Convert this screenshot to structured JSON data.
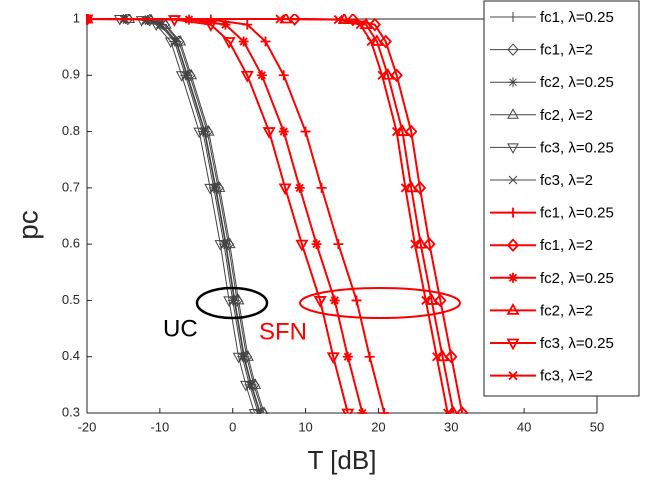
{
  "chart_data": {
    "type": "line",
    "x_label": "T [dB]",
    "y_label": "pc",
    "xlim": [
      -20,
      50
    ],
    "xticks": [
      -20,
      -10,
      0,
      10,
      20,
      30,
      40,
      50
    ],
    "ylim": [
      0.3,
      1
    ],
    "yticks": [
      0.3,
      0.4,
      0.5,
      0.6,
      0.7,
      0.8,
      0.9,
      1
    ],
    "annotations": [
      {
        "text": "UC",
        "color": "#000000"
      },
      {
        "text": "SFN",
        "color": "#ff0000"
      }
    ],
    "series": [
      {
        "name": "fc1, λ=0.25",
        "color": "#444444",
        "marker": "plus",
        "x": [
          -20,
          -14.7,
          -11.7,
          -9.7,
          -7.7,
          -6.2,
          -3.8,
          -2.3,
          -0.9,
          0.3,
          1.6,
          2.6,
          3.8
        ],
        "values": [
          1,
          1,
          0.998,
          0.99,
          0.96,
          0.9,
          0.8,
          0.7,
          0.6,
          0.5,
          0.4,
          0.35,
          0.3
        ]
      },
      {
        "name": "fc1, λ=2",
        "color": "#444444",
        "marker": "diamond",
        "x": [
          -20,
          -14.4,
          -11.4,
          -9.4,
          -7.4,
          -5.9,
          -3.5,
          -2,
          -0.6,
          0.6,
          1.9,
          2.9,
          4.1
        ],
        "values": [
          1,
          1,
          0.998,
          0.99,
          0.96,
          0.9,
          0.8,
          0.7,
          0.6,
          0.5,
          0.4,
          0.35,
          0.3
        ]
      },
      {
        "name": "fc2, λ=0.25",
        "color": "#444444",
        "marker": "star",
        "x": [
          -20,
          -15,
          -12,
          -10,
          -8,
          -6.5,
          -4.1,
          -2.6,
          -1.2,
          0,
          1.3,
          2.3,
          3.5
        ],
        "values": [
          1,
          1,
          0.998,
          0.99,
          0.96,
          0.9,
          0.8,
          0.7,
          0.6,
          0.5,
          0.4,
          0.35,
          0.3
        ]
      },
      {
        "name": "fc2, λ=2",
        "color": "#444444",
        "marker": "triup",
        "x": [
          -20,
          -14.2,
          -11.2,
          -9.2,
          -7.2,
          -5.7,
          -3.3,
          -1.8,
          -0.4,
          0.8,
          2.1,
          3.1,
          4.3
        ],
        "values": [
          1,
          1,
          0.998,
          0.99,
          0.96,
          0.9,
          0.8,
          0.7,
          0.6,
          0.5,
          0.4,
          0.35,
          0.3
        ]
      },
      {
        "name": "fc3, λ=0.25",
        "color": "#444444",
        "marker": "tridown",
        "x": [
          -20,
          -15.5,
          -12.5,
          -10.5,
          -8.5,
          -7,
          -4.6,
          -3.1,
          -1.7,
          -0.5,
          0.8,
          1.8,
          3
        ],
        "values": [
          1,
          1,
          0.998,
          0.99,
          0.96,
          0.9,
          0.8,
          0.7,
          0.6,
          0.5,
          0.4,
          0.35,
          0.3
        ]
      },
      {
        "name": "fc3, λ=2",
        "color": "#444444",
        "marker": "cross",
        "x": [
          -20,
          -14.8,
          -11.8,
          -9.8,
          -7.8,
          -6.3,
          -3.9,
          -2.4,
          -1,
          0.2,
          1.5,
          2.5,
          3.7
        ],
        "values": [
          1,
          1,
          0.998,
          0.99,
          0.96,
          0.9,
          0.8,
          0.7,
          0.6,
          0.5,
          0.4,
          0.35,
          0.3
        ]
      },
      {
        "name": "fc1, λ=0.25",
        "color": "#ff0000",
        "marker": "plus",
        "x": [
          -20,
          -3,
          2,
          4.5,
          7,
          10,
          12.2,
          14.5,
          17,
          18.8,
          20.8
        ],
        "values": [
          1,
          0.999,
          0.99,
          0.96,
          0.9,
          0.8,
          0.7,
          0.6,
          0.5,
          0.4,
          0.3
        ]
      },
      {
        "name": "fc1, λ=2",
        "color": "#ff0000",
        "marker": "diamond",
        "x": [
          -20,
          8.5,
          16.5,
          19.5,
          21,
          22.5,
          24.5,
          25.7,
          27,
          28.5,
          30,
          31.5
        ],
        "values": [
          1,
          1,
          0.999,
          0.99,
          0.96,
          0.9,
          0.8,
          0.7,
          0.6,
          0.5,
          0.4,
          0.3
        ]
      },
      {
        "name": "fc2, λ=0.25",
        "color": "#ff0000",
        "marker": "star",
        "x": [
          -20,
          -6,
          -1,
          1.5,
          4,
          7,
          9.2,
          11.5,
          14,
          15.8,
          17.8
        ],
        "values": [
          1,
          0.999,
          0.99,
          0.96,
          0.9,
          0.8,
          0.7,
          0.6,
          0.5,
          0.4,
          0.3
        ]
      },
      {
        "name": "fc2, λ=2",
        "color": "#ff0000",
        "marker": "triup",
        "x": [
          -20,
          7.3,
          15.3,
          18.3,
          19.8,
          21.3,
          23.3,
          24.5,
          25.8,
          27.3,
          28.8,
          30.3
        ],
        "values": [
          1,
          1,
          0.999,
          0.99,
          0.96,
          0.9,
          0.8,
          0.7,
          0.6,
          0.5,
          0.4,
          0.3
        ]
      },
      {
        "name": "fc3, λ=0.25",
        "color": "#ff0000",
        "marker": "tridown",
        "x": [
          -20,
          -8,
          -3,
          -0.5,
          2,
          5,
          7.2,
          9.5,
          12,
          13.8,
          15.8
        ],
        "values": [
          1,
          0.999,
          0.99,
          0.96,
          0.9,
          0.8,
          0.7,
          0.6,
          0.5,
          0.4,
          0.3
        ]
      },
      {
        "name": "fc3, λ=2",
        "color": "#ff0000",
        "marker": "cross",
        "x": [
          -20,
          6.5,
          14.5,
          17.5,
          19,
          20.5,
          22.5,
          23.7,
          25,
          26.5,
          28,
          29.5
        ],
        "values": [
          1,
          1,
          0.999,
          0.99,
          0.96,
          0.9,
          0.8,
          0.7,
          0.6,
          0.5,
          0.4,
          0.3
        ]
      }
    ]
  }
}
